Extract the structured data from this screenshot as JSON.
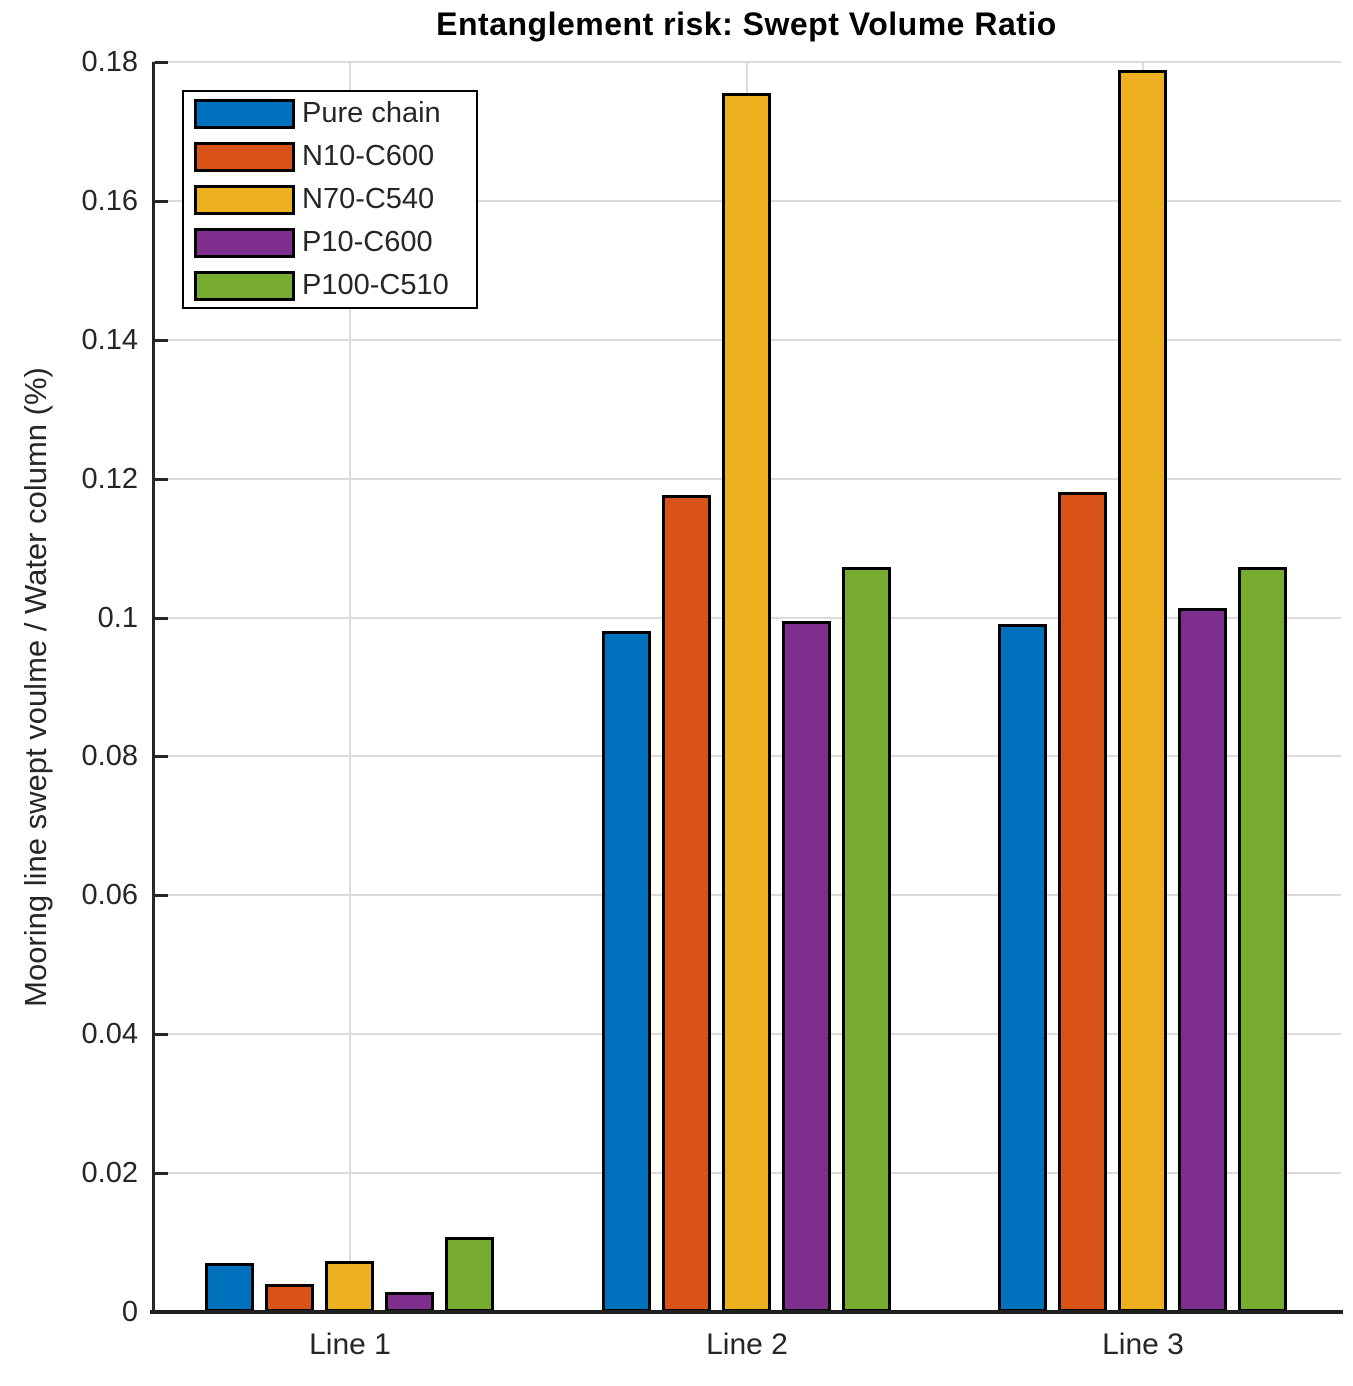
{
  "title": "Entanglement risk: Swept Volume Ratio",
  "chart_data": {
    "type": "bar",
    "title": "Entanglement risk: Swept Volume Ratio",
    "xlabel": "",
    "ylabel": "Mooring line swept voulme / Water column (%)",
    "categories": [
      "Line 1",
      "Line 2",
      "Line 3"
    ],
    "series": [
      {
        "name": "Pure chain",
        "color": "#0072BD",
        "values": [
          0.0071,
          0.0981,
          0.0991
        ]
      },
      {
        "name": "N10-C600",
        "color": "#D95319",
        "values": [
          0.004,
          0.1177,
          0.1181
        ]
      },
      {
        "name": "N70-C540",
        "color": "#EDB120",
        "values": [
          0.0073,
          0.1755,
          0.1789
        ]
      },
      {
        "name": "P10-C600",
        "color": "#7E2F8E",
        "values": [
          0.0029,
          0.0995,
          0.1014
        ]
      },
      {
        "name": "P100-C510",
        "color": "#77AC30",
        "values": [
          0.0108,
          0.1073,
          0.1073
        ]
      }
    ],
    "ylim": [
      0,
      0.18
    ],
    "yticks": [
      0,
      0.02,
      0.04,
      0.06,
      0.08,
      0.1,
      0.12,
      0.14,
      0.16,
      0.18
    ],
    "ytick_labels": [
      "0",
      "0.02",
      "0.04",
      "0.06",
      "0.08",
      "0.1",
      "0.12",
      "0.14",
      "0.16",
      "0.18"
    ],
    "grid": true,
    "legend_position": "top-left",
    "colors": {
      "axis": "#262626",
      "gridline": "#dbdbdb",
      "bar_edge": "#000000",
      "title_text": "#000000"
    }
  }
}
